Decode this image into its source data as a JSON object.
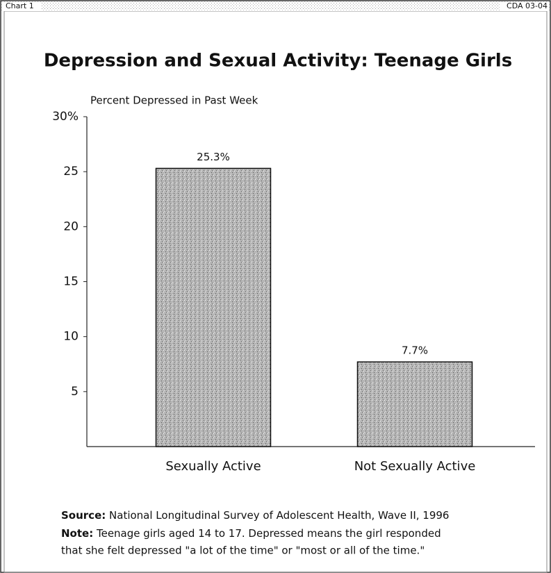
{
  "header": {
    "left": "Chart 1",
    "right": "CDA 03-04"
  },
  "chart_data": {
    "type": "bar",
    "title": "Depression and Sexual Activity: Teenage Girls",
    "y_label": "Percent Depressed in Past Week",
    "categories": [
      "Sexually Active",
      "Not Sexually Active"
    ],
    "values": [
      25.3,
      7.7
    ],
    "value_labels": [
      "25.3%",
      "7.7%"
    ],
    "color": "#b5b5b5",
    "ylim": [
      0,
      30
    ],
    "yticks": [
      5,
      10,
      15,
      20,
      25,
      {
        "value": 30,
        "label": "30%"
      }
    ],
    "grid": false
  },
  "notes": [
    {
      "label": "Source:",
      "text": "National Longitudinal Survey of Adolescent Health, Wave II, 1996"
    },
    {
      "label": "Note:",
      "text": "Teenage girls aged 14 to 17. Depressed means the girl responded",
      "text2": "that she felt depressed \"a lot of the time\" or \"most or all of the time.\""
    }
  ]
}
